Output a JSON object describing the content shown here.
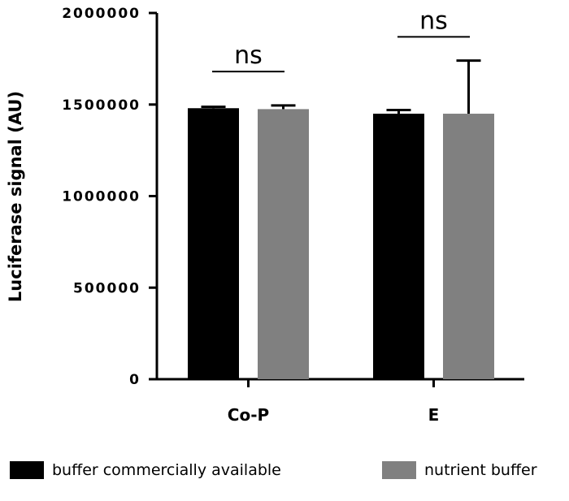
{
  "chart_data": {
    "type": "bar",
    "title": "",
    "xlabel": "",
    "ylabel": "Luciferase signal (AU)",
    "ylim": [
      0,
      2000000
    ],
    "yticks": [
      0,
      500000,
      1000000,
      1500000,
      2000000
    ],
    "ytick_labels": [
      "0",
      "500000",
      "1000000",
      "1500000",
      "2000000"
    ],
    "categories": [
      "Co-P",
      "E"
    ],
    "series": [
      {
        "name": "buffer commercially available",
        "color": "#000000",
        "values": [
          1480000,
          1450000
        ],
        "errors": [
          8000,
          20000
        ]
      },
      {
        "name": "nutrient buffer",
        "color": "#808080",
        "values": [
          1475000,
          1450000
        ],
        "errors": [
          20000,
          290000
        ]
      }
    ],
    "annotations": [
      {
        "text": "ns",
        "category": "Co-P",
        "y": 1680000
      },
      {
        "text": "ns",
        "category": "E",
        "y": 1870000
      }
    ],
    "grid": false,
    "legend_position": "bottom"
  }
}
